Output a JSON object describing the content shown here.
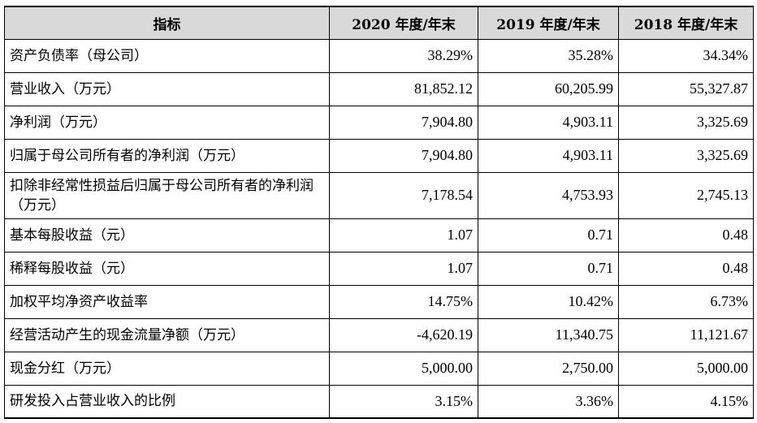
{
  "table": {
    "headers": [
      "指标",
      "2020 年度/年末",
      "2019 年度/年末",
      "2018 年度/年末"
    ],
    "rows": [
      {
        "label": "资产负债率（母公司）",
        "values": [
          "38.29%",
          "35.28%",
          "34.34%"
        ]
      },
      {
        "label": "营业收入（万元）",
        "values": [
          "81,852.12",
          "60,205.99",
          "55,327.87"
        ]
      },
      {
        "label": "净利润（万元）",
        "values": [
          "7,904.80",
          "4,903.11",
          "3,325.69"
        ]
      },
      {
        "label": "归属于母公司所有者的净利润（万元）",
        "values": [
          "7,904.80",
          "4,903.11",
          "3,325.69"
        ]
      },
      {
        "label": "扣除非经常性损益后归属于母公司所有者的净利润（万元）",
        "values": [
          "7,178.54",
          "4,753.93",
          "2,745.13"
        ]
      },
      {
        "label": "基本每股收益（元）",
        "values": [
          "1.07",
          "0.71",
          "0.48"
        ]
      },
      {
        "label": "稀释每股收益（元）",
        "values": [
          "1.07",
          "0.71",
          "0.48"
        ]
      },
      {
        "label": "加权平均净资产收益率",
        "values": [
          "14.75%",
          "10.42%",
          "6.73%"
        ]
      },
      {
        "label": "经营活动产生的现金流量净额（万元）",
        "values": [
          "-4,620.19",
          "11,340.75",
          "11,121.67"
        ]
      },
      {
        "label": "现金分红（万元）",
        "values": [
          "5,000.00",
          "2,750.00",
          "5,000.00"
        ]
      },
      {
        "label": "研发投入占营业收入的比例",
        "values": [
          "3.15%",
          "3.36%",
          "4.15%"
        ]
      }
    ]
  }
}
